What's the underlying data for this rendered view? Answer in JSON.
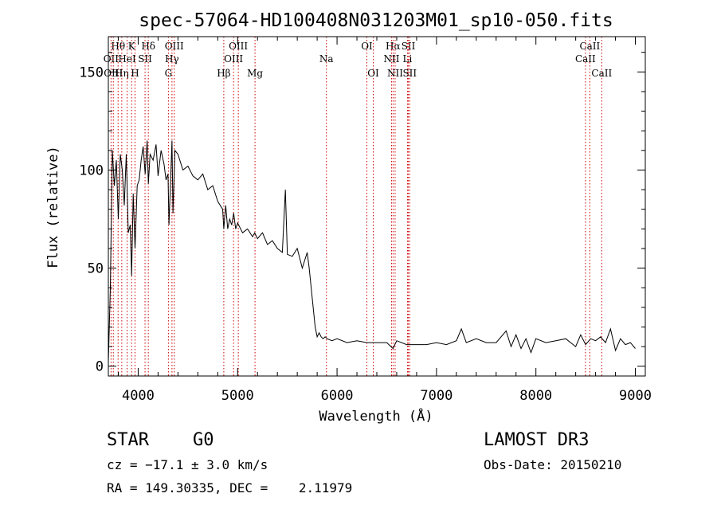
{
  "chart_data": {
    "type": "line",
    "title": "spec-57064-HD100408N031203M01_sp10-050.fits",
    "xlabel": "Wavelength (Å)",
    "ylabel": "Flux (relative)",
    "xlim": [
      3700,
      9100
    ],
    "ylim": [
      -5,
      168
    ],
    "xticks": [
      4000,
      5000,
      6000,
      7000,
      8000,
      9000
    ],
    "yticks": [
      0,
      50,
      100,
      150
    ],
    "line_color": "#000000",
    "marker_color": "#cc0000",
    "series": [
      {
        "x": [
          3700,
          3720,
          3740,
          3760,
          3780,
          3800,
          3820,
          3840,
          3860,
          3880,
          3900,
          3920,
          3934,
          3950,
          3968,
          3990,
          4010,
          4030,
          4050,
          4070,
          4090,
          4102,
          4120,
          4150,
          4180,
          4200,
          4230,
          4260,
          4280,
          4300,
          4310,
          4330,
          4340,
          4350,
          4370,
          4400,
          4450,
          4500,
          4550,
          4600,
          4650,
          4700,
          4750,
          4800,
          4850,
          4861,
          4880,
          4900,
          4920,
          4940,
          4960,
          4980,
          5000,
          5050,
          5100,
          5150,
          5172,
          5200,
          5250,
          5300,
          5350,
          5400,
          5450,
          5480,
          5500,
          5550,
          5600,
          5650,
          5700,
          5720,
          5740,
          5760,
          5780,
          5800,
          5820,
          5840,
          5860,
          5880,
          5900,
          5950,
          6000,
          6100,
          6200,
          6300,
          6400,
          6500,
          6563,
          6600,
          6700,
          6800,
          6900,
          7000,
          7100,
          7200,
          7250,
          7300,
          7400,
          7500,
          7600,
          7700,
          7750,
          7800,
          7850,
          7900,
          7950,
          8000,
          8100,
          8200,
          8300,
          8400,
          8450,
          8500,
          8550,
          8600,
          8650,
          8700,
          8750,
          8800,
          8850,
          8900,
          8950,
          9000
        ],
        "y": [
          2,
          40,
          110,
          92,
          105,
          75,
          108,
          100,
          82,
          108,
          68,
          72,
          46,
          88,
          60,
          92,
          95,
          105,
          112,
          98,
          115,
          93,
          108,
          105,
          113,
          97,
          110,
          103,
          95,
          98,
          72,
          100,
          115,
          78,
          110,
          108,
          100,
          102,
          97,
          95,
          98,
          90,
          92,
          84,
          80,
          70,
          82,
          70,
          75,
          72,
          78,
          70,
          73,
          68,
          70,
          66,
          68,
          65,
          68,
          62,
          64,
          60,
          58,
          90,
          57,
          56,
          60,
          50,
          58,
          50,
          40,
          30,
          20,
          15,
          17,
          15,
          14,
          15,
          14,
          13,
          14,
          12,
          13,
          12,
          12,
          12,
          9,
          13,
          11,
          11,
          11,
          12,
          11,
          13,
          19,
          12,
          14,
          12,
          12,
          18,
          10,
          16,
          9,
          14,
          7,
          14,
          12,
          13,
          14,
          10,
          16,
          11,
          14,
          13,
          15,
          12,
          19,
          8,
          14,
          11,
          12,
          9
        ]
      }
    ],
    "line_markers": [
      {
        "label": "Hθ",
        "x": 3798,
        "row": 1
      },
      {
        "label": "OII",
        "x": 3727,
        "row": 2
      },
      {
        "label": "OIII",
        "x": 3750,
        "row": 3
      },
      {
        "label": "Hη",
        "x": 3835,
        "row": 3
      },
      {
        "label": "HeI",
        "x": 3889,
        "row": 2
      },
      {
        "label": "K",
        "x": 3934,
        "row": 1
      },
      {
        "label": "SII",
        "x": 4069,
        "row": 2
      },
      {
        "label": "H",
        "x": 3968,
        "row": 3
      },
      {
        "label": "Hδ",
        "x": 4102,
        "row": 1
      },
      {
        "label": "OIII",
        "x": 4363,
        "row": 1
      },
      {
        "label": "Hγ",
        "x": 4340,
        "row": 2
      },
      {
        "label": "G",
        "x": 4304,
        "row": 3
      },
      {
        "label": "Hβ",
        "x": 4861,
        "row": 3
      },
      {
        "label": "OIII",
        "x": 5007,
        "row": 1
      },
      {
        "label": "OIII",
        "x": 4959,
        "row": 2
      },
      {
        "label": "Mg",
        "x": 5175,
        "row": 3
      },
      {
        "label": "Na",
        "x": 5893,
        "row": 2
      },
      {
        "label": "OI",
        "x": 6300,
        "row": 1
      },
      {
        "label": "OI",
        "x": 6364,
        "row": 3
      },
      {
        "label": "Hα",
        "x": 6563,
        "row": 1
      },
      {
        "label": "NII",
        "x": 6548,
        "row": 2
      },
      {
        "label": "NII",
        "x": 6584,
        "row": 3
      },
      {
        "label": "SII",
        "x": 6717,
        "row": 1
      },
      {
        "label": "Li",
        "x": 6708,
        "row": 2
      },
      {
        "label": "SII",
        "x": 6731,
        "row": 3
      },
      {
        "label": "CaII",
        "x": 8542,
        "row": 1
      },
      {
        "label": "CaII",
        "x": 8498,
        "row": 2
      },
      {
        "label": "CaII",
        "x": 8662,
        "row": 3
      }
    ]
  },
  "info": {
    "object_class": "STAR",
    "subclass": "G0",
    "survey": "LAMOST DR3",
    "redshift_text": "cz = −17.1 ± 3.0 km/s",
    "obs_date_text": "Obs-Date: 20150210",
    "coords_text": "RA = 149.30335, DEC =    2.11979"
  }
}
